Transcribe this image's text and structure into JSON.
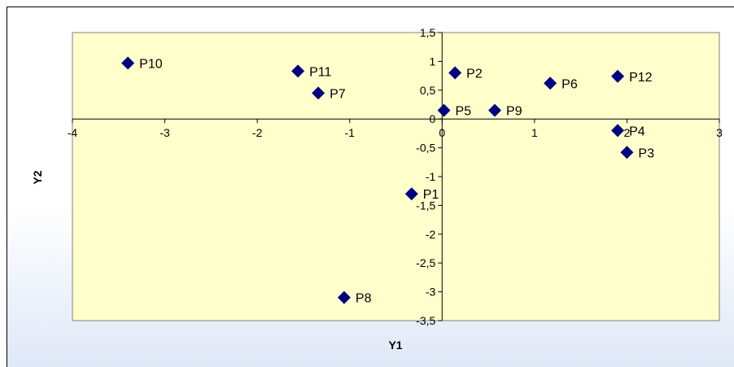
{
  "chart_data": {
    "type": "scatter",
    "xlabel": "Y1",
    "ylabel": "Y2",
    "xlim": [
      -4,
      3
    ],
    "ylim": [
      -3.5,
      1.5
    ],
    "x_ticks": [
      "-4",
      "-3",
      "-2",
      "-1",
      "0",
      "1",
      "2",
      "3"
    ],
    "y_ticks": [
      "1,5",
      "1",
      "0,5",
      "0",
      "-0,5",
      "-1",
      "-1,5",
      "-2",
      "-2,5",
      "-3",
      "-3,5"
    ],
    "grid": false,
    "legend": "none",
    "plot_area_color": "#ffffcc",
    "marker_color": "#000080",
    "marker": "diamond",
    "points": [
      {
        "label": "P1",
        "x": -0.33,
        "y": -1.3
      },
      {
        "label": "P2",
        "x": 0.14,
        "y": 0.8
      },
      {
        "label": "P3",
        "x": 2.0,
        "y": -0.58
      },
      {
        "label": "P4",
        "x": 1.9,
        "y": -0.2
      },
      {
        "label": "P5",
        "x": 0.02,
        "y": 0.15
      },
      {
        "label": "P6",
        "x": 1.17,
        "y": 0.62
      },
      {
        "label": "P7",
        "x": -1.34,
        "y": 0.45
      },
      {
        "label": "P8",
        "x": -1.06,
        "y": -3.1
      },
      {
        "label": "P9",
        "x": 0.57,
        "y": 0.15
      },
      {
        "label": "P10",
        "x": -3.4,
        "y": 0.97
      },
      {
        "label": "P11",
        "x": -1.56,
        "y": 0.83
      },
      {
        "label": "P12",
        "x": 1.9,
        "y": 0.74
      }
    ]
  }
}
